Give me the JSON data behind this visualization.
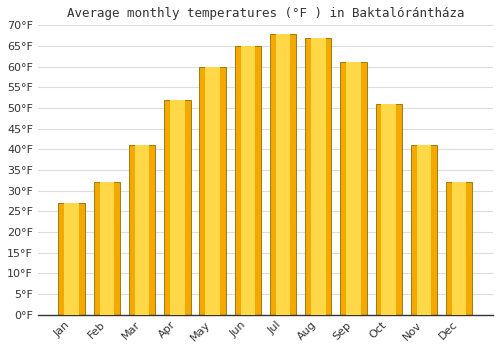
{
  "title": "Average monthly temperatures (°F ) in Baktalórántháza",
  "months": [
    "Jan",
    "Feb",
    "Mar",
    "Apr",
    "May",
    "Jun",
    "Jul",
    "Aug",
    "Sep",
    "Oct",
    "Nov",
    "Dec"
  ],
  "values": [
    27,
    32,
    41,
    52,
    60,
    65,
    68,
    67,
    61,
    51,
    41,
    32
  ],
  "bar_color_center": "#FFD040",
  "bar_color_edge": "#F5A000",
  "bar_edge_color": "#888800",
  "ylim": [
    0,
    70
  ],
  "ytick_step": 5,
  "background_color": "#ffffff",
  "grid_color": "#dddddd",
  "title_fontsize": 9,
  "tick_fontsize": 8,
  "bar_width": 0.75
}
